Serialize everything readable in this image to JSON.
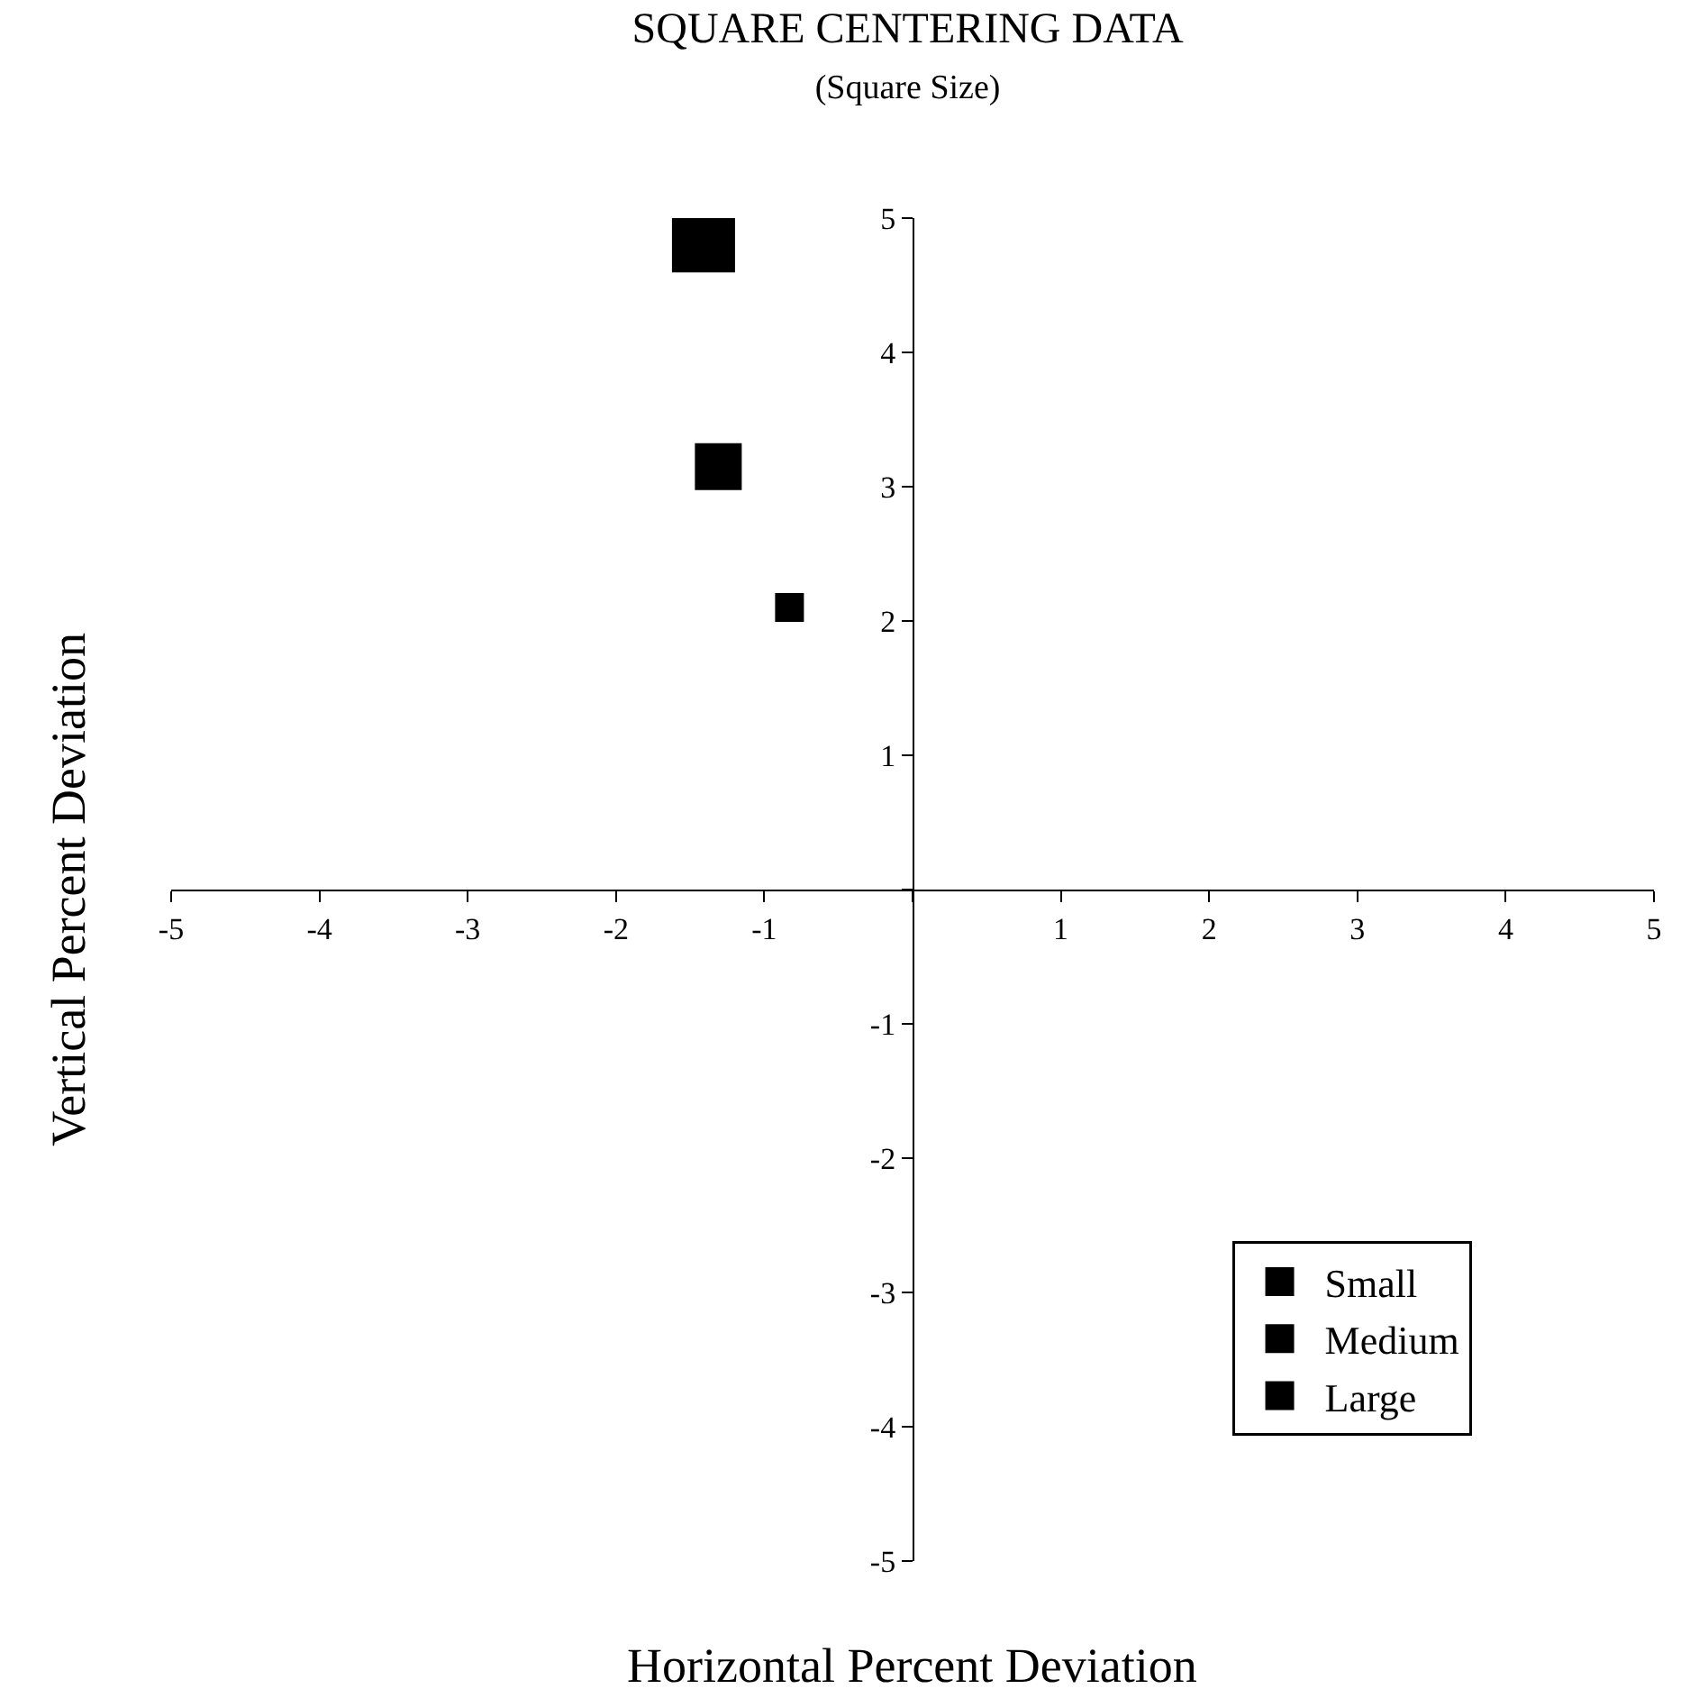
{
  "chart_data": {
    "type": "scatter",
    "title": "SQUARE CENTERING DATA",
    "subtitle": "(Square Size)",
    "xlabel": "Horizontal Percent Deviation",
    "ylabel": "Vertical Percent Deviation",
    "series": [
      {
        "name": "Small",
        "color": "#000000",
        "x": [
          -0.83
        ],
        "values": [
          2.1
        ]
      },
      {
        "name": "Medium",
        "color": "#000000",
        "x": [
          -1.31
        ],
        "values": [
          3.15
        ]
      },
      {
        "name": "Large",
        "color": "#000000",
        "x": [
          -1.41
        ],
        "values": [
          4.83
        ]
      }
    ],
    "marker": "square",
    "legend": "bottom right",
    "xlim": [
      -5,
      5
    ],
    "ylim": [
      -5,
      5
    ],
    "xticks": [
      -5,
      -4,
      -3,
      -2,
      -1,
      {
        "value": 0,
        "label": null
      },
      1,
      2,
      3,
      4,
      5
    ],
    "yticks": [
      -5,
      -4,
      -3,
      -2,
      -1,
      {
        "value": 0,
        "label": null
      },
      1,
      2,
      3,
      4,
      5
    ]
  }
}
